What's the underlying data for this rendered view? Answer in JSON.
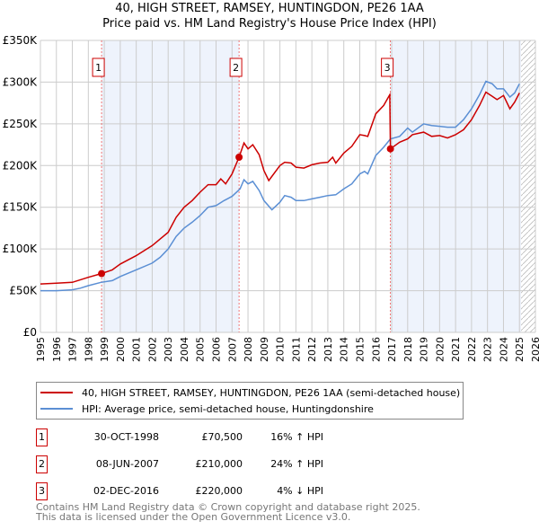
{
  "chart_data": {
    "type": "line",
    "title": "40, HIGH STREET, RAMSEY, HUNTINGDON, PE26 1AA",
    "subtitle": "Price paid vs. HM Land Registry's House Price Index (HPI)",
    "xlim": [
      1995,
      2026
    ],
    "ylim": [
      0,
      350000
    ],
    "x_ticks": [
      "1995",
      "1996",
      "1997",
      "1998",
      "1999",
      "2000",
      "2001",
      "2002",
      "2003",
      "2004",
      "2005",
      "2006",
      "2007",
      "2008",
      "2009",
      "2010",
      "2011",
      "2012",
      "2013",
      "2014",
      "2015",
      "2016",
      "2017",
      "2018",
      "2019",
      "2020",
      "2021",
      "2022",
      "2023",
      "2024",
      "2025",
      "2026"
    ],
    "y_ticks": [
      {
        "v": 0,
        "label": "£0"
      },
      {
        "v": 50000,
        "label": "£50K"
      },
      {
        "v": 100000,
        "label": "£100K"
      },
      {
        "v": 150000,
        "label": "£150K"
      },
      {
        "v": 200000,
        "label": "£200K"
      },
      {
        "v": 250000,
        "label": "£250K"
      },
      {
        "v": 300000,
        "label": "£300K"
      },
      {
        "v": 350000,
        "label": "£350K"
      }
    ],
    "grid": true,
    "forecast_hatch_from": 2025.1,
    "series": [
      {
        "name": "40, HIGH STREET, RAMSEY, HUNTINGDON, PE26 1AA (semi-detached house)",
        "color": "#cc0000",
        "x": [
          1995,
          1996,
          1997,
          1998,
          1998.83,
          1999.5,
          2000,
          2001,
          2002,
          2003,
          2003.5,
          2004,
          2004.5,
          2005,
          2005.5,
          2006,
          2006.3,
          2006.6,
          2007,
          2007.44,
          2007.75,
          2008,
          2008.3,
          2008.7,
          2009,
          2009.3,
          2010,
          2010.3,
          2010.7,
          2011,
          2011.5,
          2012,
          2012.5,
          2013,
          2013.3,
          2013.5,
          2014,
          2014.5,
          2015,
          2015.3,
          2015.5,
          2016,
          2016.5,
          2016.88,
          2016.92,
          2017.5,
          2018,
          2018.3,
          2019,
          2019.5,
          2020,
          2020.5,
          2021,
          2021.5,
          2022,
          2022.5,
          2022.9,
          2023.3,
          2023.6,
          2024,
          2024.4,
          2024.7,
          2025
        ],
        "y": [
          58000,
          59000,
          60000,
          66000,
          70500,
          75000,
          82000,
          92000,
          104000,
          120000,
          138000,
          150000,
          158000,
          168000,
          177000,
          177000,
          184000,
          178000,
          190000,
          210000,
          227000,
          220000,
          225000,
          213000,
          194000,
          182000,
          200000,
          204000,
          203000,
          198000,
          197000,
          201000,
          203000,
          204000,
          210000,
          203000,
          215000,
          223000,
          237000,
          236000,
          235000,
          262000,
          272000,
          285000,
          220000,
          228000,
          232000,
          237000,
          240000,
          235000,
          236000,
          233000,
          237000,
          243000,
          255000,
          272000,
          288000,
          283000,
          279000,
          284000,
          268000,
          276000,
          287000
        ]
      },
      {
        "name": "HPI: Average price, semi-detached house, Huntingdonshire",
        "color": "#5b8fd4",
        "x": [
          1995,
          1996,
          1997,
          1997.5,
          1998,
          1998.8,
          1999.5,
          2000,
          2001,
          2002,
          2002.5,
          2003,
          2003.5,
          2004,
          2004.5,
          2005,
          2005.5,
          2006,
          2006.5,
          2007,
          2007.5,
          2007.75,
          2008,
          2008.3,
          2008.7,
          2009,
          2009.5,
          2010,
          2010.3,
          2010.7,
          2011,
          2011.5,
          2012,
          2012.5,
          2013,
          2013.5,
          2014,
          2014.5,
          2015,
          2015.3,
          2015.5,
          2016,
          2016.5,
          2016.92,
          2017.5,
          2018,
          2018.3,
          2019,
          2019.5,
          2020,
          2020.5,
          2021,
          2021.5,
          2022,
          2022.5,
          2022.9,
          2023.3,
          2023.6,
          2024,
          2024.4,
          2024.7,
          2025
        ],
        "y": [
          50000,
          50000,
          51000,
          53000,
          56000,
          60000,
          62000,
          67000,
          75000,
          83000,
          90000,
          100000,
          115000,
          125000,
          132000,
          140000,
          150000,
          152000,
          158000,
          163000,
          172000,
          183000,
          178000,
          181000,
          170000,
          158000,
          147000,
          156000,
          164000,
          162000,
          158000,
          158000,
          160000,
          162000,
          164000,
          165000,
          172000,
          178000,
          190000,
          193000,
          190000,
          212000,
          222000,
          232000,
          235000,
          245000,
          240000,
          250000,
          248000,
          247000,
          246000,
          246000,
          255000,
          268000,
          285000,
          301000,
          298000,
          292000,
          292000,
          282000,
          287000,
          298000
        ]
      }
    ],
    "sales": [
      {
        "n": "1",
        "x": 1998.83,
        "y": 70500,
        "date": "30-OCT-1998",
        "price": "£70,500",
        "hpi": "16% ↑ HPI"
      },
      {
        "n": "2",
        "x": 2007.44,
        "y": 210000,
        "date": "08-JUN-2007",
        "price": "£210,000",
        "hpi": "24% ↑ HPI"
      },
      {
        "n": "3",
        "x": 2016.92,
        "y": 220000,
        "date": "02-DEC-2016",
        "price": "£220,000",
        "hpi": "4% ↓ HPI"
      }
    ]
  },
  "footer": {
    "line1": "Contains HM Land Registry data © Crown copyright and database right 2025.",
    "line2": "This data is licensed under the Open Government Licence v3.0."
  }
}
